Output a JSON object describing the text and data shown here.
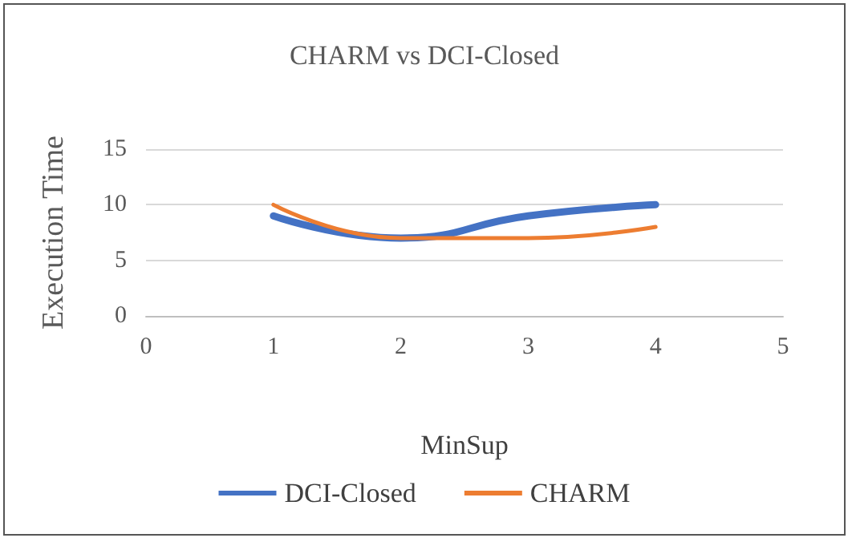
{
  "chart_data": {
    "type": "line",
    "title": "CHARM vs DCI-Closed",
    "xlabel": "MinSup",
    "ylabel": "Execution Time",
    "x": [
      1,
      2,
      3,
      4
    ],
    "series": [
      {
        "name": "DCI-Closed",
        "color": "#4472c4",
        "values": [
          9,
          7,
          9,
          10
        ]
      },
      {
        "name": "CHARM",
        "color": "#ed7d31",
        "values": [
          10,
          7,
          7,
          8
        ]
      }
    ],
    "xlim": [
      0,
      5
    ],
    "xticks": [
      0,
      1,
      2,
      3,
      4,
      5
    ],
    "ylim": [
      0,
      15
    ],
    "yticks": [
      0,
      5,
      10,
      15
    ],
    "grid": "y",
    "legend": "bottom",
    "marker": "none",
    "line_style": "solid"
  }
}
